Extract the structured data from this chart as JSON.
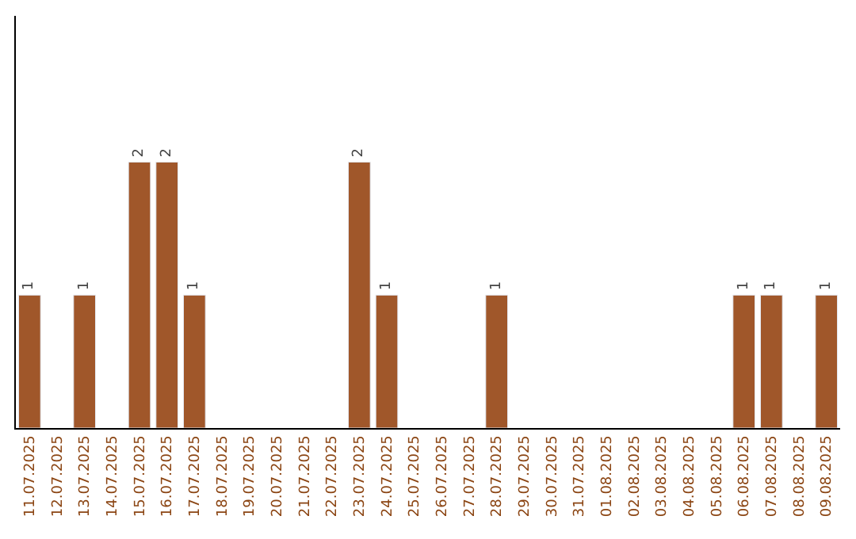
{
  "chart_data": {
    "type": "bar",
    "categories": [
      "11.07.2025",
      "12.07.2025",
      "13.07.2025",
      "14.07.2025",
      "15.07.2025",
      "16.07.2025",
      "17.07.2025",
      "18.07.2025",
      "19.07.2025",
      "20.07.2025",
      "21.07.2025",
      "22.07.2025",
      "23.07.2025",
      "24.07.2025",
      "25.07.2025",
      "26.07.2025",
      "27.07.2025",
      "28.07.2025",
      "29.07.2025",
      "30.07.2025",
      "31.07.2025",
      "01.08.2025",
      "02.08.2025",
      "03.08.2025",
      "04.08.2025",
      "05.08.2025",
      "06.08.2025",
      "07.08.2025",
      "08.08.2025",
      "09.08.2025"
    ],
    "values": [
      1,
      null,
      1,
      null,
      2,
      2,
      1,
      null,
      null,
      null,
      null,
      null,
      2,
      1,
      null,
      null,
      null,
      1,
      null,
      null,
      null,
      null,
      null,
      null,
      null,
      null,
      1,
      1,
      null,
      1
    ],
    "value_labels": [
      "1",
      null,
      "1",
      null,
      "2",
      "2",
      "1",
      null,
      null,
      null,
      null,
      null,
      "2",
      "1",
      null,
      null,
      null,
      "1",
      null,
      null,
      null,
      null,
      null,
      null,
      null,
      null,
      "1",
      "1",
      null,
      "1"
    ],
    "color": "#a0572a",
    "ylim": [
      0,
      3.1
    ],
    "tick_labels": "x"
  }
}
